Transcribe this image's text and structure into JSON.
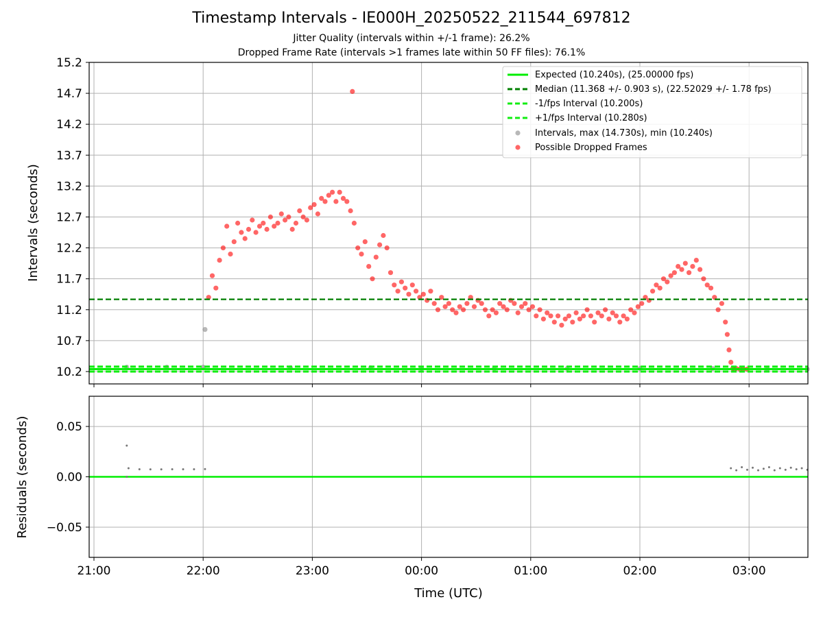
{
  "chart_data": [
    {
      "type": "scatter",
      "title": "Timestamp Intervals - IE000H_20250522_211544_697812",
      "subtitle_lines": [
        "Jitter Quality (intervals within +/-1 frame): 26.2%",
        "Dropped Frame Rate (intervals >1 frames late within 50 FF files): 76.1%"
      ],
      "ylabel": "Intervals (seconds)",
      "ylim": [
        10.0,
        15.2
      ],
      "yticks": [
        "10.2",
        "10.7",
        "11.2",
        "11.7",
        "12.2",
        "12.7",
        "13.2",
        "13.7",
        "14.2",
        "14.7",
        "15.2"
      ],
      "grid": true,
      "legend_position": "upper right",
      "reference_lines": [
        {
          "name": "Expected (10.240s), (25.00000 fps)",
          "y": 10.24,
          "style": "solid",
          "color": "#00ee00"
        },
        {
          "name": "Median (11.368 +/- 0.903 s), (22.52029 +/- 1.78 fps)",
          "y": 11.368,
          "style": "dashed",
          "color": "#007f00"
        },
        {
          "name": "-1/fps Interval (10.200s)",
          "y": 10.2,
          "style": "dashed",
          "color": "#11ee11"
        },
        {
          "name": "+1/fps Interval (10.280s)",
          "y": 10.28,
          "style": "dashed",
          "color": "#11ee11"
        }
      ],
      "series": [
        {
          "name": "Intervals, max (14.730s), min (10.240s)",
          "color": "#888888",
          "points": [
            [
              "21:18",
              10.27
            ],
            [
              "21:40",
              10.27
            ],
            [
              "22:00",
              10.27
            ],
            [
              "22:01",
              10.88
            ],
            [
              "22:48",
              10.26
            ],
            [
              "23:32",
              10.26
            ],
            [
              "00:00",
              10.25
            ],
            [
              "00:40",
              10.25
            ],
            [
              "01:20",
              10.25
            ],
            [
              "02:00",
              10.25
            ],
            [
              "02:40",
              10.25
            ],
            [
              "02:52",
              10.24
            ],
            [
              "03:10",
              10.24
            ],
            [
              "03:32",
              10.24
            ]
          ]
        },
        {
          "name": "Possible Dropped Frames",
          "color": "#ff0000",
          "points": [
            [
              "22:03",
              11.4
            ],
            [
              "22:05",
              11.75
            ],
            [
              "22:07",
              11.55
            ],
            [
              "22:09",
              12.0
            ],
            [
              "22:11",
              12.2
            ],
            [
              "22:13",
              12.55
            ],
            [
              "22:15",
              12.1
            ],
            [
              "22:17",
              12.3
            ],
            [
              "22:19",
              12.6
            ],
            [
              "22:21",
              12.45
            ],
            [
              "22:23",
              12.35
            ],
            [
              "22:25",
              12.5
            ],
            [
              "22:27",
              12.65
            ],
            [
              "22:29",
              12.45
            ],
            [
              "22:31",
              12.55
            ],
            [
              "22:33",
              12.6
            ],
            [
              "22:35",
              12.5
            ],
            [
              "22:37",
              12.7
            ],
            [
              "22:39",
              12.55
            ],
            [
              "22:41",
              12.6
            ],
            [
              "22:43",
              12.75
            ],
            [
              "22:45",
              12.65
            ],
            [
              "22:47",
              12.7
            ],
            [
              "22:49",
              12.5
            ],
            [
              "22:51",
              12.6
            ],
            [
              "22:53",
              12.8
            ],
            [
              "22:55",
              12.7
            ],
            [
              "22:57",
              12.65
            ],
            [
              "22:59",
              12.85
            ],
            [
              "23:01",
              12.9
            ],
            [
              "23:03",
              12.75
            ],
            [
              "23:05",
              13.0
            ],
            [
              "23:07",
              12.95
            ],
            [
              "23:09",
              13.05
            ],
            [
              "23:11",
              13.1
            ],
            [
              "23:13",
              12.95
            ],
            [
              "23:15",
              13.1
            ],
            [
              "23:17",
              13.0
            ],
            [
              "23:19",
              12.95
            ],
            [
              "23:21",
              12.8
            ],
            [
              "23:22",
              14.73
            ],
            [
              "23:23",
              12.6
            ],
            [
              "23:25",
              12.2
            ],
            [
              "23:27",
              12.1
            ],
            [
              "23:29",
              12.3
            ],
            [
              "23:31",
              11.9
            ],
            [
              "23:33",
              11.7
            ],
            [
              "23:35",
              12.05
            ],
            [
              "23:37",
              12.25
            ],
            [
              "23:39",
              12.4
            ],
            [
              "23:41",
              12.2
            ],
            [
              "23:43",
              11.8
            ],
            [
              "23:45",
              11.6
            ],
            [
              "23:47",
              11.5
            ],
            [
              "23:49",
              11.65
            ],
            [
              "23:51",
              11.55
            ],
            [
              "23:53",
              11.45
            ],
            [
              "23:55",
              11.6
            ],
            [
              "23:57",
              11.5
            ],
            [
              "23:59",
              11.4
            ],
            [
              "00:01",
              11.45
            ],
            [
              "00:03",
              11.35
            ],
            [
              "00:05",
              11.5
            ],
            [
              "00:07",
              11.3
            ],
            [
              "00:09",
              11.2
            ],
            [
              "00:11",
              11.4
            ],
            [
              "00:13",
              11.25
            ],
            [
              "00:15",
              11.3
            ],
            [
              "00:17",
              11.2
            ],
            [
              "00:19",
              11.15
            ],
            [
              "00:21",
              11.25
            ],
            [
              "00:23",
              11.2
            ],
            [
              "00:25",
              11.3
            ],
            [
              "00:27",
              11.4
            ],
            [
              "00:29",
              11.25
            ],
            [
              "00:31",
              11.35
            ],
            [
              "00:33",
              11.3
            ],
            [
              "00:35",
              11.2
            ],
            [
              "00:37",
              11.1
            ],
            [
              "00:39",
              11.2
            ],
            [
              "00:41",
              11.15
            ],
            [
              "00:43",
              11.3
            ],
            [
              "00:45",
              11.25
            ],
            [
              "00:47",
              11.2
            ],
            [
              "00:49",
              11.35
            ],
            [
              "00:51",
              11.3
            ],
            [
              "00:53",
              11.15
            ],
            [
              "00:55",
              11.25
            ],
            [
              "00:57",
              11.3
            ],
            [
              "00:59",
              11.2
            ],
            [
              "01:01",
              11.25
            ],
            [
              "01:03",
              11.1
            ],
            [
              "01:05",
              11.2
            ],
            [
              "01:07",
              11.05
            ],
            [
              "01:09",
              11.15
            ],
            [
              "01:11",
              11.1
            ],
            [
              "01:13",
              11.0
            ],
            [
              "01:15",
              11.1
            ],
            [
              "01:17",
              10.95
            ],
            [
              "01:19",
              11.05
            ],
            [
              "01:21",
              11.1
            ],
            [
              "01:23",
              11.0
            ],
            [
              "01:25",
              11.15
            ],
            [
              "01:27",
              11.05
            ],
            [
              "01:29",
              11.1
            ],
            [
              "01:31",
              11.2
            ],
            [
              "01:33",
              11.1
            ],
            [
              "01:35",
              11.0
            ],
            [
              "01:37",
              11.15
            ],
            [
              "01:39",
              11.1
            ],
            [
              "01:41",
              11.2
            ],
            [
              "01:43",
              11.05
            ],
            [
              "01:45",
              11.15
            ],
            [
              "01:47",
              11.1
            ],
            [
              "01:49",
              11.0
            ],
            [
              "01:51",
              11.1
            ],
            [
              "01:53",
              11.05
            ],
            [
              "01:55",
              11.2
            ],
            [
              "01:57",
              11.15
            ],
            [
              "01:59",
              11.25
            ],
            [
              "02:01",
              11.3
            ],
            [
              "02:03",
              11.4
            ],
            [
              "02:05",
              11.35
            ],
            [
              "02:07",
              11.5
            ],
            [
              "02:09",
              11.6
            ],
            [
              "02:11",
              11.55
            ],
            [
              "02:13",
              11.7
            ],
            [
              "02:15",
              11.65
            ],
            [
              "02:17",
              11.75
            ],
            [
              "02:19",
              11.8
            ],
            [
              "02:21",
              11.9
            ],
            [
              "02:23",
              11.85
            ],
            [
              "02:25",
              11.95
            ],
            [
              "02:27",
              11.8
            ],
            [
              "02:29",
              11.9
            ],
            [
              "02:31",
              12.0
            ],
            [
              "02:33",
              11.85
            ],
            [
              "02:35",
              11.7
            ],
            [
              "02:37",
              11.6
            ],
            [
              "02:39",
              11.55
            ],
            [
              "02:41",
              11.4
            ],
            [
              "02:43",
              11.2
            ],
            [
              "02:45",
              11.3
            ],
            [
              "02:47",
              11.0
            ],
            [
              "02:48",
              10.8
            ],
            [
              "02:49",
              10.55
            ],
            [
              "02:50",
              10.35
            ],
            [
              "02:51",
              10.25
            ],
            [
              "02:53",
              10.25
            ],
            [
              "02:55",
              10.24
            ],
            [
              "02:57",
              10.24
            ],
            [
              "02:59",
              10.24
            ]
          ]
        }
      ]
    },
    {
      "type": "scatter",
      "xlabel": "Time (UTC)",
      "ylabel": "Residuals (seconds)",
      "ylim": [
        -0.08,
        0.08
      ],
      "yticks": [
        "−0.05",
        "0.00",
        "0.05"
      ],
      "xticks": [
        "21:00",
        "22:00",
        "23:00",
        "00:00",
        "01:00",
        "02:00",
        "03:00"
      ],
      "grid": true,
      "reference_lines": [
        {
          "y": 0.0,
          "color": "#00ee00",
          "style": "solid"
        }
      ],
      "series": [
        {
          "color": "#777777",
          "points": [
            [
              "21:18",
              0.031
            ],
            [
              "21:18",
              0.0
            ],
            [
              "21:19",
              0.0085
            ],
            [
              "21:25",
              0.0075
            ],
            [
              "21:31",
              0.0074
            ],
            [
              "21:37",
              0.0074
            ],
            [
              "21:43",
              0.0075
            ],
            [
              "21:49",
              0.0075
            ],
            [
              "21:55",
              0.0075
            ],
            [
              "22:01",
              0.0076
            ],
            [
              "02:50",
              0.0085
            ],
            [
              "02:53",
              0.0065
            ],
            [
              "02:56",
              0.0095
            ],
            [
              "02:59",
              0.007
            ],
            [
              "03:02",
              0.009
            ],
            [
              "03:05",
              0.0065
            ],
            [
              "03:08",
              0.008
            ],
            [
              "03:11",
              0.0095
            ],
            [
              "03:14",
              0.0065
            ],
            [
              "03:17",
              0.0085
            ],
            [
              "03:20",
              0.007
            ],
            [
              "03:23",
              0.009
            ],
            [
              "03:26",
              0.0075
            ],
            [
              "03:29",
              0.0085
            ],
            [
              "03:32",
              0.007
            ]
          ]
        }
      ]
    }
  ]
}
